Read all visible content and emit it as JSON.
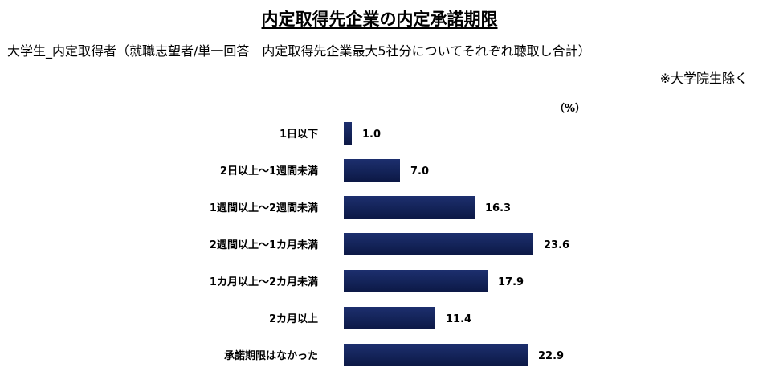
{
  "chart_data": {
    "type": "bar",
    "orientation": "horizontal",
    "title": "内定取得先企業の内定承諾期限",
    "subtitle": "大学生_内定取得者（就職志望者/単一回答　内定取得先企業最大5社分についてそれぞれ聴取し合計）",
    "note": "※大学院生除く",
    "unit": "（%）",
    "categories": [
      "1日以下",
      "2日以上～1週間未満",
      "1週間以上～2週間未満",
      "2週間以上～1カ月未満",
      "1カ月以上～2カ月未満",
      "2カ月以上",
      "承諾期限はなかった"
    ],
    "values": [
      1.0,
      7.0,
      16.3,
      23.6,
      17.9,
      11.4,
      22.9
    ],
    "value_labels": [
      "1.0",
      "7.0",
      "16.3",
      "23.6",
      "17.9",
      "11.4",
      "22.9"
    ],
    "xlim": [
      0,
      100
    ],
    "bar_color": "#14245a",
    "grid": false,
    "legend": "none"
  }
}
